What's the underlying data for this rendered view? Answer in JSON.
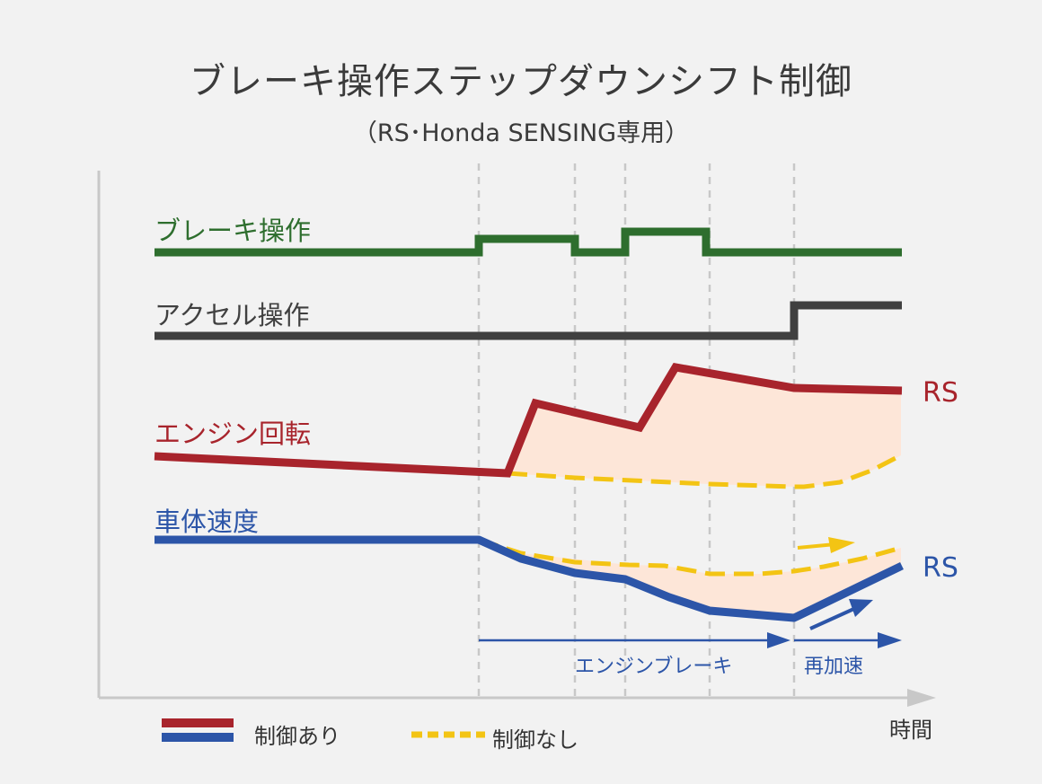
{
  "title": "ブレーキ操作ステップダウンシフト制御",
  "subtitle": "（RS･Honda SENSING専用）",
  "signals": {
    "brake": "ブレーキ操作",
    "accel": "アクセル操作",
    "engine": "エンジン回転",
    "speed": "車体速度"
  },
  "series_tags": {
    "engine_rs": "RS",
    "speed_rs": "RS"
  },
  "phases": {
    "engine_brake": "エンジンブレーキ",
    "reacceleration": "再加速"
  },
  "axis": {
    "x_label": "時間"
  },
  "legend": {
    "with_control": "制御あり",
    "without_control": "制御なし"
  },
  "colors": {
    "brake": "#2e6e2e",
    "accel": "#404040",
    "with_control_red": "#a8242c",
    "with_control_blue": "#2c55a8",
    "without_control": "#f3c414",
    "difference_fill": "#fde6d8",
    "guide": "#c8c8c8",
    "axis": "#c8c8c8"
  }
}
